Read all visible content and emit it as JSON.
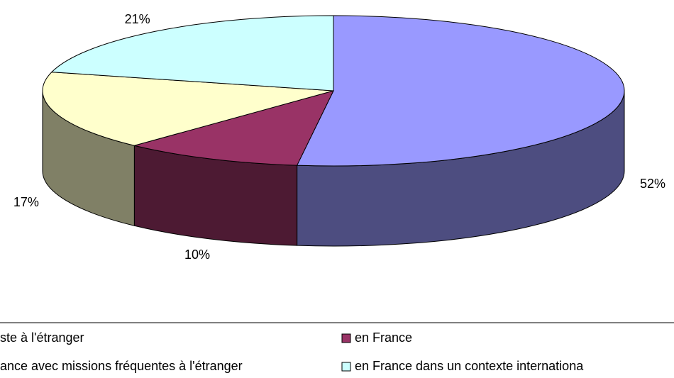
{
  "chart_data": {
    "type": "pie",
    "categories": [
      "ste à l'étranger",
      "en France",
      "ance avec missions fréquentes à l'étranger",
      "en France dans un contexte internationa"
    ],
    "values": [
      52,
      10,
      17,
      21
    ],
    "value_labels": [
      "52%",
      "10%",
      "17%",
      "21%"
    ],
    "colors": [
      "#9999ff",
      "#993366",
      "#ffffcc",
      "#ccffff"
    ],
    "legend": "bottom"
  }
}
